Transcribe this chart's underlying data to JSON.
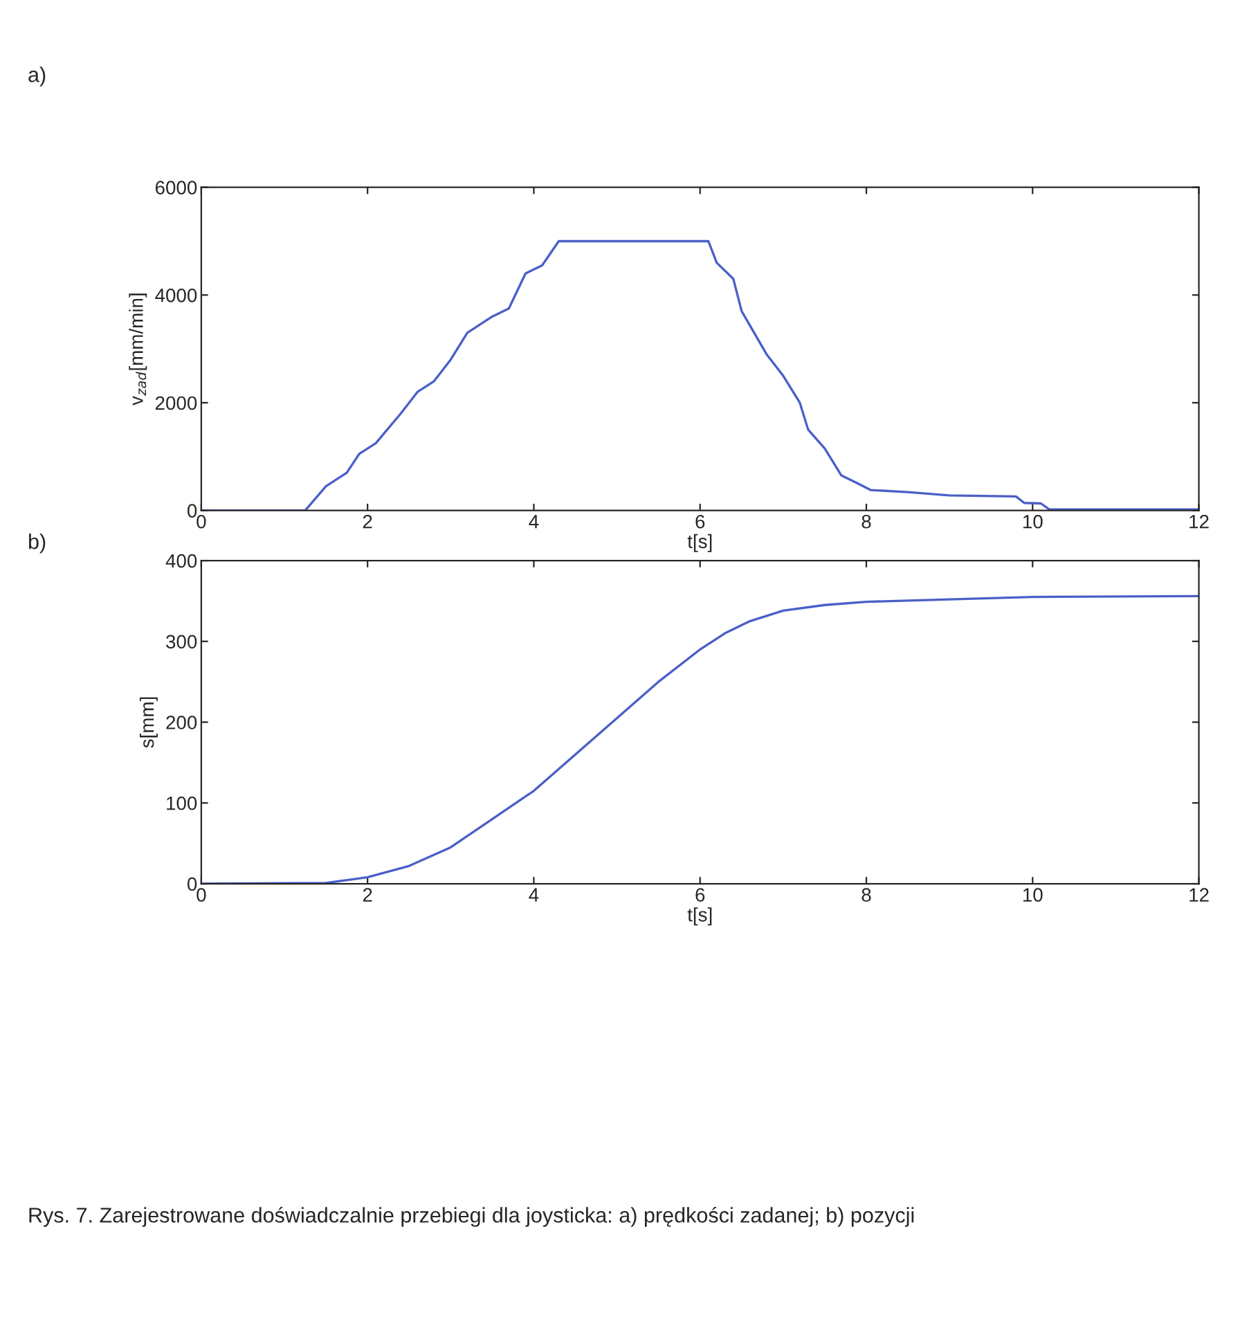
{
  "chart_data": [
    {
      "type": "line",
      "xlabel": "t[s]",
      "ylabel": "v$_{zad}$[mm/min]",
      "annotations": [
        "a)"
      ],
      "xlim": [
        0,
        12
      ],
      "ylim": [
        0,
        6000
      ],
      "xticks": [
        0,
        2,
        4,
        6,
        8,
        10,
        12
      ],
      "yticks": [
        0,
        2000,
        4000,
        6000
      ],
      "grid": false,
      "series": [
        {
          "color": "#4a5fc8",
          "x": [
            0,
            1.25,
            1.5,
            1.75,
            1.9,
            2.1,
            2.4,
            2.6,
            2.8,
            3.0,
            3.2,
            3.5,
            3.7,
            3.9,
            4.1,
            4.3,
            6.1,
            6.2,
            6.4,
            6.5,
            6.8,
            7.0,
            7.2,
            7.3,
            7.5,
            7.7,
            7.9,
            8.05,
            8.5,
            9.0,
            9.8,
            9.9,
            10.1,
            10.2,
            12
          ],
          "values": [
            0,
            0,
            450,
            700,
            1050,
            1250,
            1800,
            2200,
            2400,
            2800,
            3300,
            3600,
            3750,
            4400,
            4550,
            5000,
            5000,
            4600,
            4300,
            3700,
            2900,
            2500,
            2000,
            1500,
            1150,
            650,
            500,
            380,
            340,
            280,
            260,
            140,
            130,
            20,
            20
          ]
        }
      ]
    },
    {
      "type": "line",
      "xlabel": "t[s]",
      "ylabel": "s[mm]",
      "annotations": [
        "b)",
        "Rys. 7. Zarejestrowane doświadczalnie przebiegi dla joysticka: a) prędkości zadanej; b) pozycji"
      ],
      "xlim": [
        0,
        12
      ],
      "ylim": [
        0,
        400
      ],
      "xticks": [
        0,
        2,
        4,
        6,
        8,
        10,
        12
      ],
      "yticks": [
        0,
        100,
        200,
        300,
        400
      ],
      "grid": false,
      "series": [
        {
          "color": "#4a5fc8",
          "x": [
            0,
            1.5,
            2,
            2.5,
            3,
            3.5,
            4,
            4.5,
            5,
            5.5,
            6,
            6.3,
            6.6,
            7,
            7.5,
            8,
            9,
            10,
            12
          ],
          "values": [
            0,
            1,
            8,
            22,
            45,
            80,
            115,
            160,
            205,
            250,
            290,
            310,
            325,
            338,
            345,
            349,
            352,
            355,
            356
          ]
        }
      ]
    }
  ]
}
